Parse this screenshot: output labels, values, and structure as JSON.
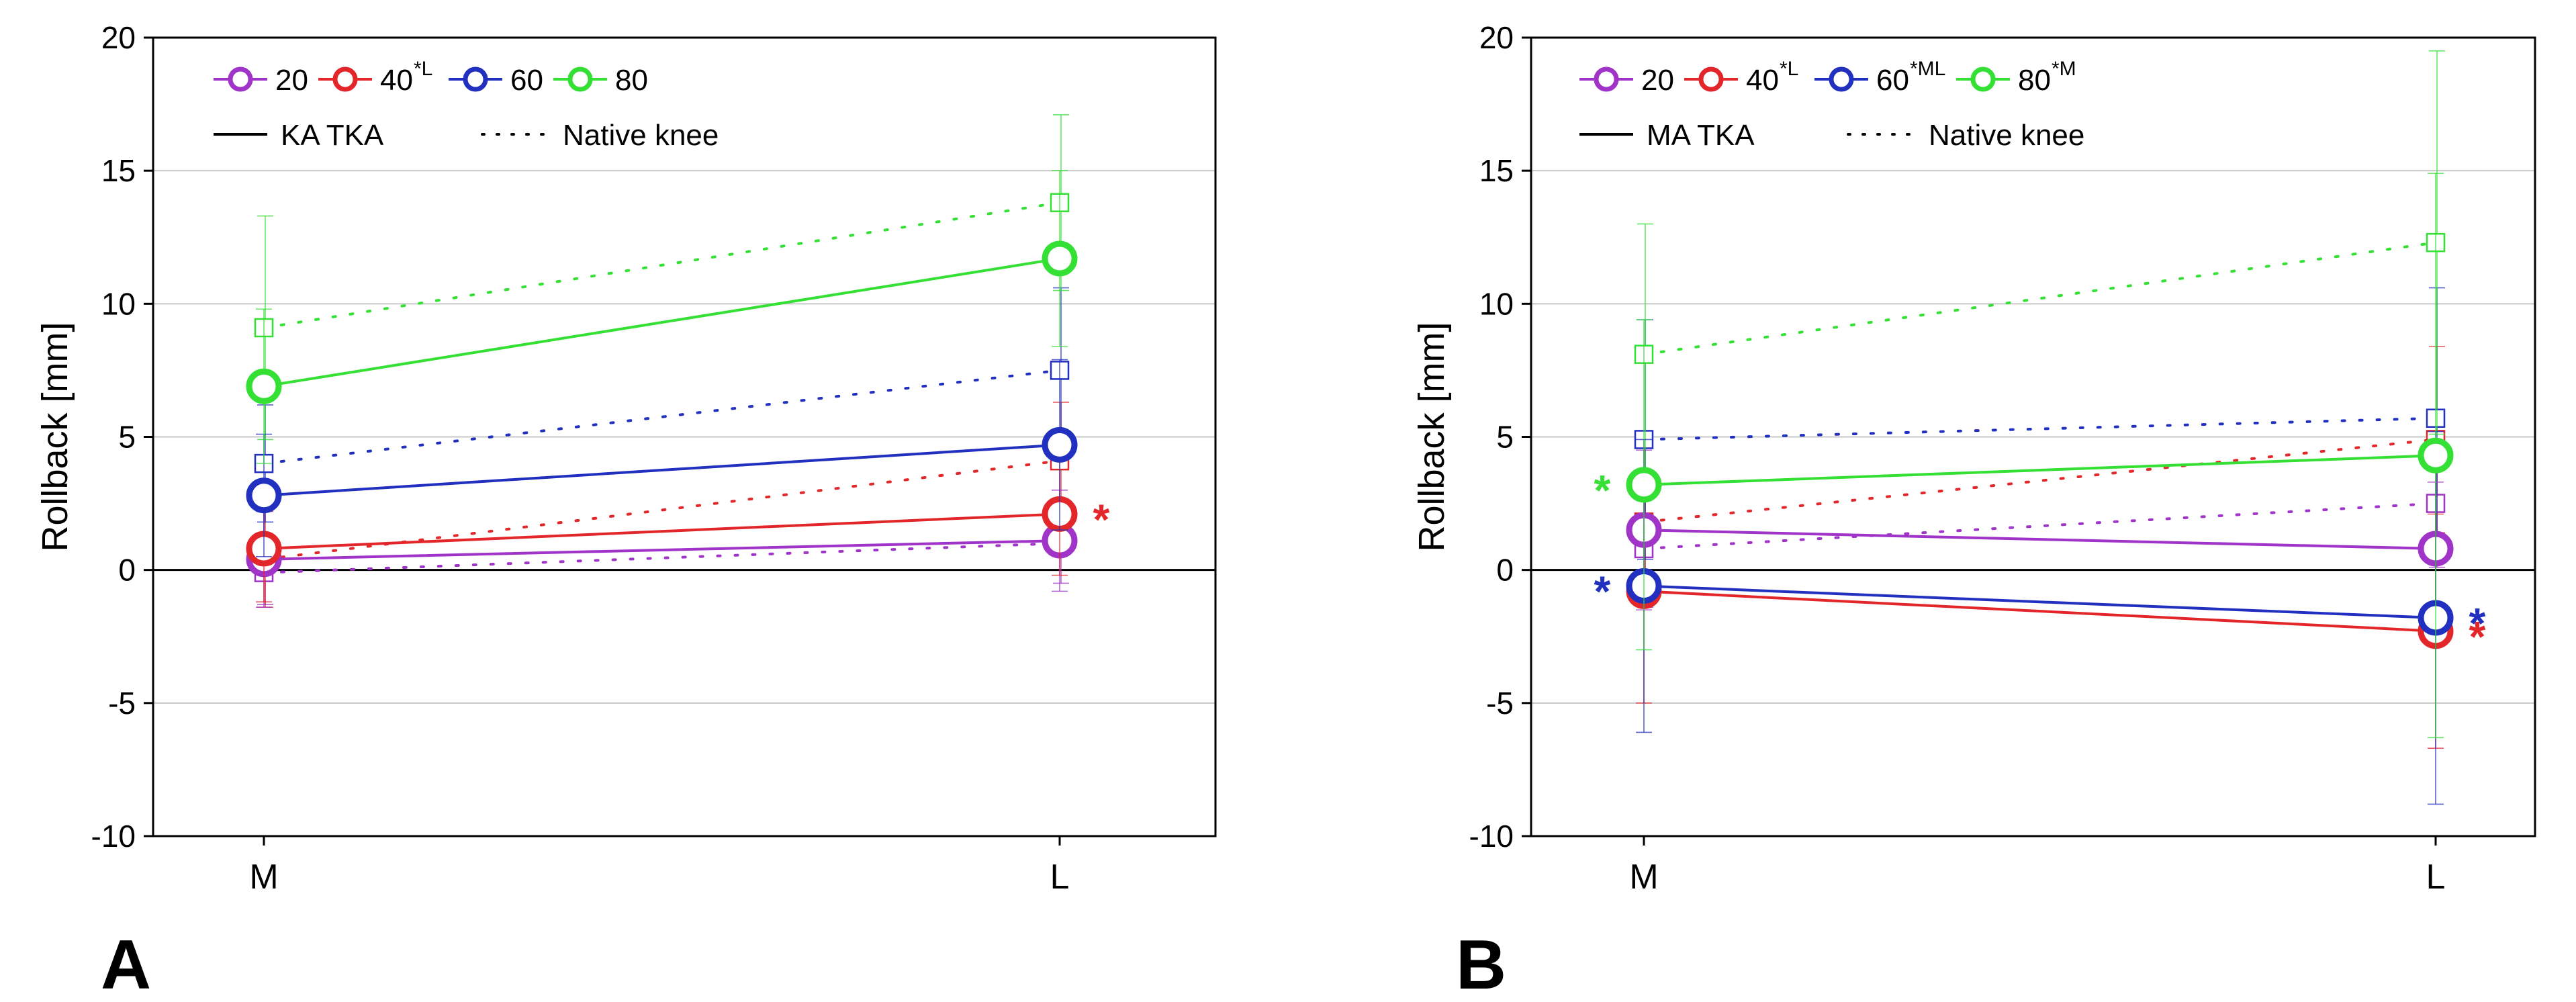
{
  "figure": {
    "panels": [
      "A",
      "B"
    ]
  },
  "colors": {
    "deg20": "#a033c8",
    "deg40": "#e3262a",
    "deg60": "#2230c0",
    "deg80": "#33e033",
    "axis": "#000000",
    "grid": "#c8c8c8"
  },
  "chart_data": [
    {
      "panel": "A",
      "type": "line",
      "ylabel": "Rollback [mm]",
      "ylim": [
        -10,
        20
      ],
      "yticks": [
        "-10",
        "-5",
        "0",
        "5",
        "10",
        "15",
        "20"
      ],
      "ytick_values": [
        -10,
        -5,
        0,
        5,
        10,
        15,
        20
      ],
      "categories": [
        "M",
        "L"
      ],
      "grid": "horizontal",
      "legend": {
        "position": "top-left",
        "entries": [
          {
            "label": "20",
            "sup": "",
            "color_key": "deg20"
          },
          {
            "label": "40",
            "sup": "*L",
            "color_key": "deg40"
          },
          {
            "label": "60",
            "sup": "",
            "color_key": "deg60"
          },
          {
            "label": "80",
            "sup": "",
            "color_key": "deg80"
          }
        ],
        "style_entries": [
          {
            "label": "KA TKA",
            "style": "solid"
          },
          {
            "label": "Native knee",
            "style": "dotted"
          }
        ]
      },
      "series": [
        {
          "name": "20",
          "group": "KA TKA",
          "color_key": "deg20",
          "values": [
            0.4,
            1.1
          ],
          "err": [
            1.8,
            1.9
          ]
        },
        {
          "name": "40",
          "group": "KA TKA",
          "color_key": "deg40",
          "values": [
            0.8,
            2.1
          ],
          "err": [
            2.0,
            2.3
          ]
        },
        {
          "name": "60",
          "group": "KA TKA",
          "color_key": "deg60",
          "values": [
            2.8,
            4.7
          ],
          "err": [
            2.3,
            3.2
          ]
        },
        {
          "name": "80",
          "group": "KA TKA",
          "color_key": "deg80",
          "values": [
            6.9,
            11.7
          ],
          "err": [
            2.9,
            3.3
          ]
        },
        {
          "name": "20",
          "group": "Native knee",
          "color_key": "deg20",
          "values": [
            -0.1,
            1.0
          ],
          "err": [
            1.2,
            1.5
          ]
        },
        {
          "name": "40",
          "group": "Native knee",
          "color_key": "deg40",
          "values": [
            0.4,
            4.1
          ],
          "err": [
            1.8,
            2.2
          ]
        },
        {
          "name": "60",
          "group": "Native knee",
          "color_key": "deg60",
          "values": [
            4.0,
            7.5
          ],
          "err": [
            2.2,
            3.1
          ]
        },
        {
          "name": "80",
          "group": "Native knee",
          "color_key": "deg80",
          "values": [
            9.1,
            13.8
          ],
          "err": [
            4.2,
            3.3
          ]
        }
      ],
      "annotations": [
        {
          "text": "*",
          "color_key": "deg40",
          "category": "L",
          "value": 2.1,
          "side": "right"
        }
      ]
    },
    {
      "panel": "B",
      "type": "line",
      "ylabel": "Rollback [mm]",
      "ylim": [
        -10,
        20
      ],
      "yticks": [
        "-10",
        "-5",
        "0",
        "5",
        "10",
        "15",
        "20"
      ],
      "ytick_values": [
        -10,
        -5,
        0,
        5,
        10,
        15,
        20
      ],
      "categories": [
        "M",
        "L"
      ],
      "grid": "horizontal",
      "legend": {
        "position": "top-left",
        "entries": [
          {
            "label": "20",
            "sup": "",
            "color_key": "deg20"
          },
          {
            "label": "40",
            "sup": "*L",
            "color_key": "deg40"
          },
          {
            "label": "60",
            "sup": "*ML",
            "color_key": "deg60"
          },
          {
            "label": "80",
            "sup": "*M",
            "color_key": "deg80"
          }
        ],
        "style_entries": [
          {
            "label": "MA TKA",
            "style": "solid"
          },
          {
            "label": "Native knee",
            "style": "dotted"
          }
        ]
      },
      "series": [
        {
          "name": "20",
          "group": "MA TKA",
          "color_key": "deg20",
          "values": [
            1.5,
            0.8
          ],
          "err": [
            3.0,
            2.5
          ]
        },
        {
          "name": "40",
          "group": "MA TKA",
          "color_key": "deg40",
          "values": [
            -0.8,
            -2.3
          ],
          "err": [
            4.2,
            4.4
          ]
        },
        {
          "name": "60",
          "group": "MA TKA",
          "color_key": "deg60",
          "values": [
            -0.6,
            -1.8
          ],
          "err": [
            5.5,
            7.0
          ]
        },
        {
          "name": "80",
          "group": "MA TKA",
          "color_key": "deg80",
          "values": [
            3.2,
            4.3
          ],
          "err": [
            6.2,
            10.6
          ]
        },
        {
          "name": "20",
          "group": "Native knee",
          "color_key": "deg20",
          "values": [
            0.8,
            2.5
          ],
          "err": [
            2.2,
            2.4
          ]
        },
        {
          "name": "40",
          "group": "Native knee",
          "color_key": "deg40",
          "values": [
            1.8,
            4.9
          ],
          "err": [
            3.0,
            3.5
          ]
        },
        {
          "name": "60",
          "group": "Native knee",
          "color_key": "deg60",
          "values": [
            4.9,
            5.7
          ],
          "err": [
            4.5,
            4.9
          ]
        },
        {
          "name": "80",
          "group": "Native knee",
          "color_key": "deg80",
          "values": [
            8.1,
            12.3
          ],
          "err": [
            4.9,
            7.2
          ]
        }
      ],
      "annotations": [
        {
          "text": "*",
          "color_key": "deg80",
          "category": "M",
          "value": 3.2,
          "side": "left"
        },
        {
          "text": "*",
          "color_key": "deg60",
          "category": "M",
          "value": -0.6,
          "side": "left"
        },
        {
          "text": "*",
          "color_key": "deg60",
          "category": "L",
          "value": -1.8,
          "side": "right"
        },
        {
          "text": "*",
          "color_key": "deg40",
          "category": "L",
          "value": -2.3,
          "side": "right"
        }
      ]
    }
  ]
}
